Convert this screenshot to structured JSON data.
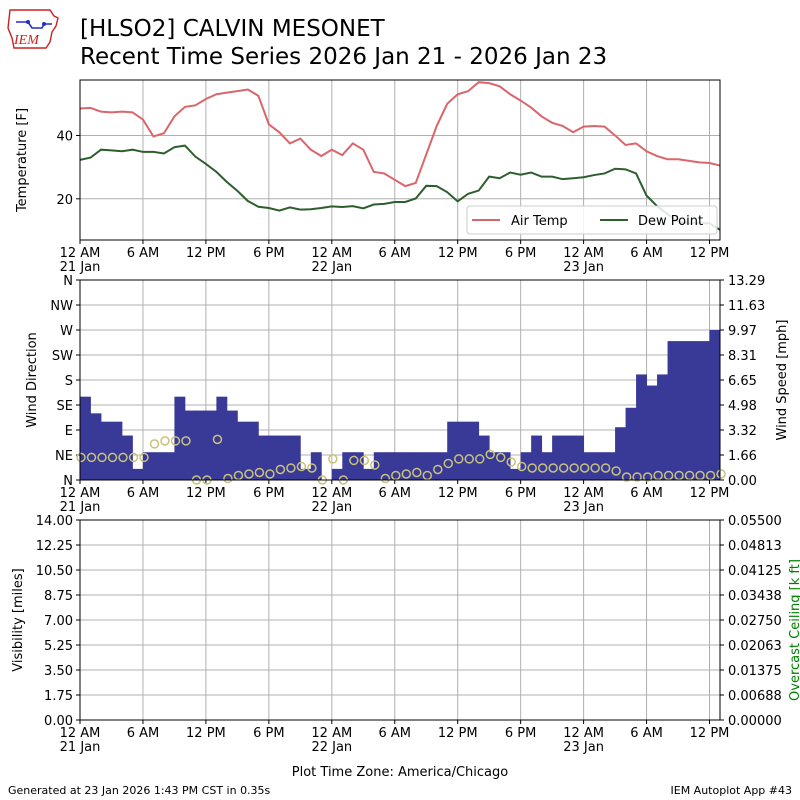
{
  "header": {
    "title_line1": "[HLSO2] CALVIN MESONET",
    "title_line2": "Recent Time Series 2026 Jan 21 - 2026 Jan 23",
    "logo_text": "IEM"
  },
  "footer": {
    "left": "Generated at 23 Jan 2026 1:43 PM CST in 0.35s",
    "right": "IEM Autoplot App #43"
  },
  "colors": {
    "air_temp": "#d9666b",
    "dew_point": "#2d5e2d",
    "wind_dir_fill": "#393997",
    "wind_speed_marker": "#c8c27a",
    "ceiling_label": "#008000",
    "grid": "#b0b0b0"
  },
  "chart_data": [
    {
      "type": "line",
      "title": "",
      "xlabel": "",
      "ylabel": "Temperature [F]",
      "x_unit": "hours since 12 AM 21 Jan",
      "x_ticks": [
        "12 AM\n21 Jan",
        "6 AM",
        "12 PM",
        "6 PM",
        "12 AM\n22 Jan",
        "6 AM",
        "12 PM",
        "6 PM",
        "12 AM\n23 Jan",
        "6 AM",
        "12 PM"
      ],
      "xlim": [
        0,
        61
      ],
      "ylim": [
        7,
        57.5
      ],
      "y_ticks": [
        20,
        40
      ],
      "grid": true,
      "legend_position": "lower-right",
      "x": [
        0,
        1,
        2,
        3,
        4,
        5,
        6,
        7,
        8,
        9,
        10,
        11,
        12,
        13,
        14,
        15,
        16,
        17,
        18,
        19,
        20,
        21,
        22,
        23,
        24,
        25,
        26,
        27,
        28,
        29,
        30,
        31,
        32,
        33,
        34,
        35,
        36,
        37,
        38,
        39,
        40,
        41,
        42,
        43,
        44,
        45,
        46,
        47,
        48,
        49,
        50,
        51,
        52,
        53,
        54,
        55,
        56,
        57,
        58,
        59,
        60,
        61
      ],
      "series": [
        {
          "name": "Air Temp",
          "values": [
            48.5,
            48.7,
            47.5,
            47.3,
            47.5,
            47.3,
            45,
            39.7,
            40.7,
            46,
            49,
            49.5,
            51.5,
            53,
            53.5,
            54,
            54.5,
            52.5,
            43.5,
            41,
            37.5,
            39,
            35.5,
            33.5,
            35.5,
            33.8,
            37.5,
            35.5,
            28.5,
            28,
            26,
            24,
            25,
            34,
            43,
            50,
            53,
            54,
            56.8,
            56.5,
            55.5,
            53,
            51,
            48.8,
            46,
            44,
            43,
            41,
            42.8,
            43,
            42.8,
            40,
            37,
            37.5,
            35,
            33.5,
            32.5,
            32.5,
            32,
            31.5,
            31.3,
            30.5
          ]
        },
        {
          "name": "Dew Point",
          "values": [
            32.3,
            33,
            35.5,
            35.3,
            35,
            35.5,
            34.8,
            34.8,
            34.3,
            36.3,
            36.8,
            33.3,
            31,
            28.5,
            25.3,
            22.5,
            19.3,
            17.5,
            17.1,
            16.3,
            17.3,
            16.6,
            16.7,
            17.1,
            17.6,
            17.4,
            17.7,
            17,
            18.2,
            18.4,
            19,
            19,
            20.1,
            24.1,
            24,
            22.1,
            19.2,
            21.6,
            22.6,
            27,
            26.5,
            28.3,
            27.6,
            28.3,
            27,
            27,
            26.2,
            26.5,
            26.8,
            27.5,
            28,
            29.5,
            29.3,
            28,
            21,
            17.7,
            15.2,
            12.8,
            12.3,
            12.3,
            12.3,
            10.2
          ]
        }
      ]
    },
    {
      "type": "bar",
      "title": "",
      "xlabel": "",
      "ylabel": "Wind Direction",
      "y2label": "Wind Speed [mph]",
      "x_unit": "hours since 12 AM 21 Jan",
      "x_ticks": [
        "12 AM\n21 Jan",
        "6 AM",
        "12 PM",
        "6 PM",
        "12 AM\n22 Jan",
        "6 AM",
        "12 PM",
        "6 PM",
        "12 AM\n23 Jan",
        "6 AM",
        "12 PM"
      ],
      "xlim": [
        0,
        61
      ],
      "ylim": [
        0,
        360
      ],
      "y_ticks": [
        "N",
        "NE",
        "E",
        "SE",
        "S",
        "SW",
        "W",
        "NW",
        "N"
      ],
      "y2lim": [
        0,
        13.29
      ],
      "y2_ticks": [
        "0.00",
        "1.66",
        "3.32",
        "4.98",
        "6.65",
        "8.31",
        "9.97",
        "11.63",
        "13.29"
      ],
      "grid": true,
      "series": [
        {
          "name": "Wind Direction",
          "values": [
            150,
            120,
            105,
            105,
            80,
            20,
            50,
            50,
            50,
            150,
            125,
            125,
            125,
            150,
            125,
            105,
            105,
            80,
            80,
            80,
            80,
            20,
            50,
            0,
            20,
            50,
            50,
            20,
            50,
            50,
            50,
            50,
            50,
            50,
            50,
            105,
            105,
            105,
            80,
            50,
            50,
            20,
            50,
            80,
            50,
            80,
            80,
            80,
            50,
            50,
            50,
            95,
            130,
            190,
            170,
            190,
            250,
            250,
            250,
            250,
            270,
            225
          ]
        },
        {
          "name": "Wind Speed",
          "type": "scatter",
          "x": [
            0,
            1,
            2,
            3,
            4,
            5,
            6,
            7,
            8,
            9,
            10,
            11,
            12,
            13,
            14,
            15,
            16,
            17,
            18,
            19,
            20,
            21,
            22,
            23,
            24,
            25,
            26,
            27,
            28,
            29,
            30,
            31,
            32,
            33,
            34,
            35,
            36,
            37,
            38,
            39,
            40,
            41,
            42,
            43,
            44,
            45,
            46,
            47,
            48,
            49,
            50,
            51,
            52,
            53,
            54,
            55,
            56,
            57,
            58,
            59,
            60,
            61
          ],
          "values": [
            1.5,
            1.5,
            1.5,
            1.5,
            1.5,
            1.5,
            1.5,
            2.4,
            2.6,
            2.6,
            2.6,
            0,
            0,
            2.7,
            0.1,
            0.3,
            0.4,
            0.5,
            0.4,
            0.7,
            0.8,
            0.9,
            0.8,
            0,
            1.4,
            0,
            1.3,
            1.3,
            1.0,
            0.1,
            0.3,
            0.4,
            0.5,
            0.3,
            0.7,
            1.1,
            1.4,
            1.4,
            1.4,
            1.7,
            1.5,
            1.2,
            0.9,
            0.8,
            0.8,
            0.8,
            0.8,
            0.8,
            0.8,
            0.8,
            0.8,
            0.6,
            0.2,
            0.2,
            0.2,
            0.3,
            0.3,
            0.3,
            0.3,
            0.3,
            0.3,
            0.4
          ]
        }
      ]
    },
    {
      "type": "line",
      "title": "",
      "xlabel": "Plot Time Zone: America/Chicago",
      "ylabel": "Visibility [miles]",
      "y2label": "Overcast Ceiling [k ft]",
      "x_ticks": [
        "12 AM\n21 Jan",
        "6 AM",
        "12 PM",
        "6 PM",
        "12 AM\n22 Jan",
        "6 AM",
        "12 PM",
        "6 PM",
        "12 AM\n23 Jan",
        "6 AM",
        "12 PM"
      ],
      "xlim": [
        0,
        61
      ],
      "ylim": [
        0,
        14
      ],
      "y_ticks": [
        "0.00",
        "1.75",
        "3.50",
        "5.25",
        "7.00",
        "8.75",
        "10.50",
        "12.25",
        "14.00"
      ],
      "y2lim": [
        0,
        0.055
      ],
      "y2_ticks": [
        "0.00000",
        "0.00688",
        "0.01375",
        "0.02063",
        "0.02750",
        "0.03438",
        "0.04125",
        "0.04813",
        "0.05500"
      ],
      "grid": true,
      "series": []
    }
  ]
}
